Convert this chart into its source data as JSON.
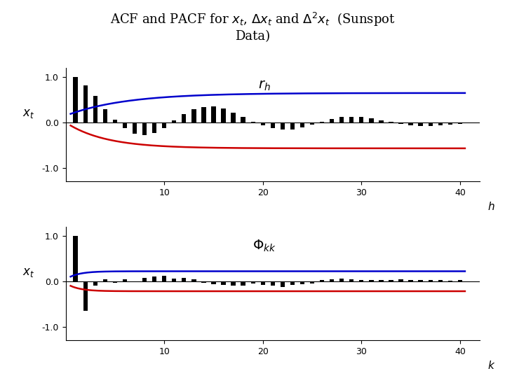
{
  "title": "ACF and PACF for $x_t$, $\\Delta x_t$ and $\\Delta^2 x_t$  (Sunspot\nData)",
  "acf_annotation": "$r_h$",
  "pacf_annotation": "$\\Phi_{kk}$",
  "ylabel_top": "$x_t$",
  "ylabel_bottom": "$x_t$",
  "xlabel_top": "h",
  "xlabel_bottom": "k",
  "ylim": [
    -1.3,
    1.2
  ],
  "yticks": [
    -1.0,
    0.0,
    1.0
  ],
  "ytick_labels": [
    "-1.0",
    "0.0",
    "1.0"
  ],
  "xlim": [
    0,
    42
  ],
  "xticks": [
    10,
    20,
    30,
    40
  ],
  "n_lags": 40,
  "acf_values": [
    1.0,
    0.82,
    0.58,
    0.3,
    0.06,
    -0.13,
    -0.25,
    -0.28,
    -0.23,
    -0.12,
    0.04,
    0.18,
    0.29,
    0.34,
    0.35,
    0.31,
    0.22,
    0.12,
    0.02,
    -0.07,
    -0.13,
    -0.16,
    -0.15,
    -0.11,
    -0.05,
    0.02,
    0.08,
    0.12,
    0.13,
    0.12,
    0.09,
    0.05,
    0.01,
    -0.03,
    -0.06,
    -0.08,
    -0.08,
    -0.07,
    -0.05,
    -0.03
  ],
  "pacf_values": [
    1.0,
    -0.65,
    -0.1,
    0.05,
    -0.03,
    0.04,
    -0.01,
    0.08,
    0.1,
    0.12,
    0.06,
    0.08,
    0.05,
    -0.04,
    -0.06,
    -0.08,
    -0.1,
    -0.09,
    -0.05,
    -0.08,
    -0.1,
    -0.12,
    -0.08,
    -0.06,
    -0.05,
    0.03,
    0.04,
    0.06,
    0.05,
    0.03,
    0.02,
    0.02,
    0.03,
    0.04,
    0.03,
    0.02,
    0.03,
    0.02,
    0.01,
    0.03
  ],
  "bar_color": "#000000",
  "conf_upper_color": "#0000cc",
  "conf_lower_color": "#cc0000",
  "bg_color": "#ffffff",
  "bar_width": 0.45,
  "fontsize_title": 13,
  "fontsize_label": 11,
  "fontsize_annot": 13,
  "fontsize_tick": 9
}
